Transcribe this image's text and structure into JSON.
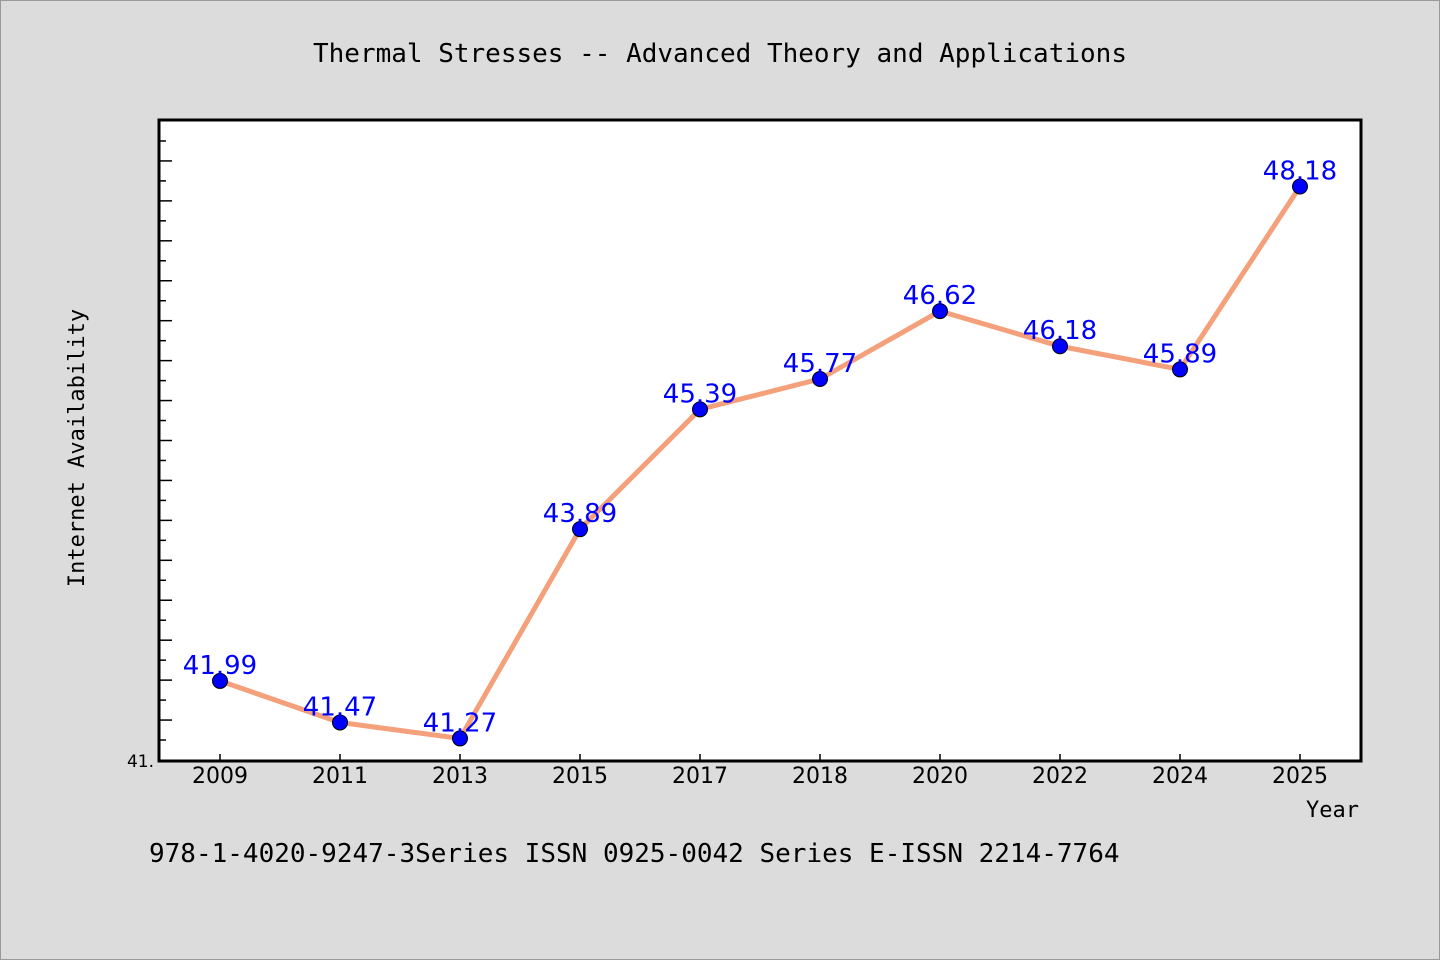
{
  "chart_data": {
    "type": "line",
    "title": "Thermal Stresses -- Advanced Theory and Applications",
    "xlabel": "Year",
    "ylabel": "Internet Availability",
    "categories": [
      "2009",
      "2011",
      "2013",
      "2015",
      "2017",
      "2018",
      "2020",
      "2022",
      "2024",
      "2025"
    ],
    "series": [
      {
        "values": [
          41.99,
          41.47,
          41.27,
          43.89,
          45.39,
          45.77,
          46.62,
          46.18,
          45.89,
          48.18
        ]
      }
    ],
    "data_labels": [
      "41.99",
      "41.47",
      "41.27",
      "43.89",
      "45.39",
      "45.77",
      "46.62",
      "46.18",
      "45.89",
      "48.18"
    ],
    "ylim": [
      41.0,
      49.0
    ],
    "y_tick_label": "41.",
    "grid": false,
    "line_color": "#f4a07a",
    "marker_color": "#0000ff",
    "label_color": "#0000ff",
    "footer": "978-1-4020-9247-3Series ISSN 0925-0042 Series E-ISSN 2214-7764"
  }
}
